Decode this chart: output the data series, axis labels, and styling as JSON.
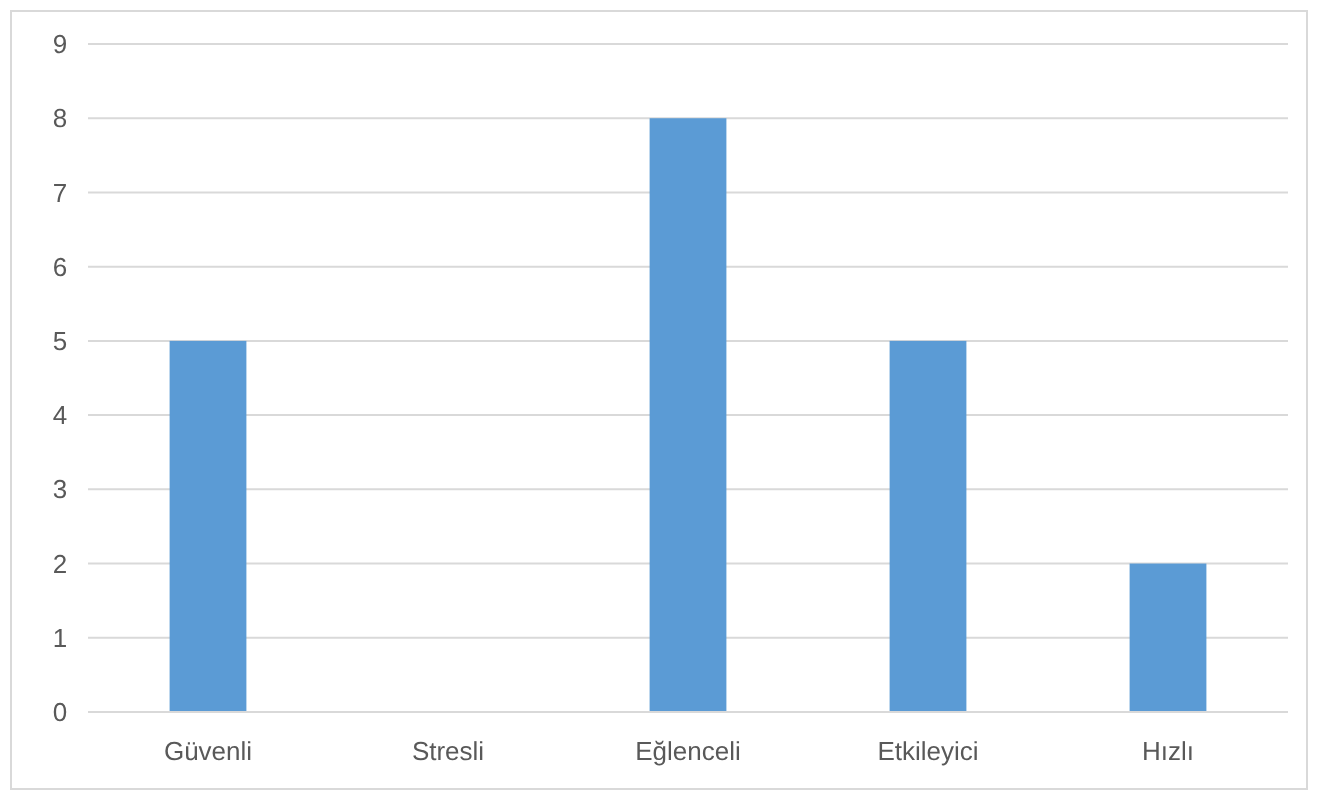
{
  "chart_data": {
    "type": "bar",
    "categories": [
      "Güvenli",
      "Stresli",
      "Eğlenceli",
      "Etkileyici",
      "Hızlı"
    ],
    "values": [
      5,
      0,
      8,
      5,
      2
    ],
    "color": "#5b9bd5",
    "ylim": [
      0,
      9
    ],
    "yticks": [
      0,
      1,
      2,
      3,
      4,
      5,
      6,
      7,
      8,
      9
    ],
    "grid": "y"
  }
}
